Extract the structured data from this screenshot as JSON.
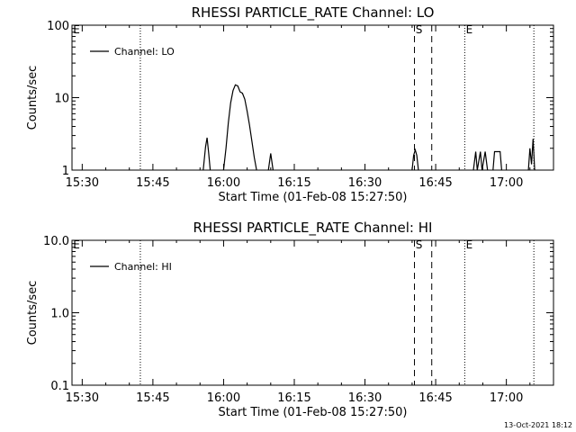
{
  "footer_timestamp": "13-Oct-2021 18:12",
  "chart_data": [
    {
      "type": "line",
      "title": "RHESSI PARTICLE_RATE Channel: LO",
      "xlabel": "Start Time (01-Feb-08 15:27:50)",
      "ylabel": "Counts/sec",
      "y_scale": "log",
      "xlim": [
        "15:27:50",
        "17:10:00"
      ],
      "ylim": [
        1,
        100
      ],
      "x_ticks": [
        "15:30",
        "15:45",
        "16:00",
        "16:15",
        "16:30",
        "16:45",
        "17:00"
      ],
      "y_ticks": [
        "1",
        "10",
        "100"
      ],
      "legend": {
        "position": "top-left",
        "entries": [
          "Channel: LO"
        ]
      },
      "markers": [
        {
          "label": "E",
          "time": "15:27:50",
          "style": "none"
        },
        {
          "label": "",
          "time": "15:42:20",
          "style": "dotted"
        },
        {
          "label": "S",
          "time": "16:40:30",
          "style": "dashed"
        },
        {
          "label": "",
          "time": "16:44:10",
          "style": "dashed"
        },
        {
          "label": "E",
          "time": "16:51:10",
          "style": "dotted"
        },
        {
          "label": "",
          "time": "17:05:50",
          "style": "dotted"
        }
      ],
      "series": [
        {
          "name": "Channel: LO",
          "segments": [
            [
              [
                "15:55:40",
                1
              ],
              [
                "15:56:10",
                2.1
              ],
              [
                "15:56:30",
                2.8
              ],
              [
                "15:56:50",
                1.7
              ],
              [
                "15:57:10",
                1
              ]
            ],
            [
              [
                "16:00:00",
                1
              ],
              [
                "16:00:30",
                2.0
              ],
              [
                "16:01:00",
                4.5
              ],
              [
                "16:01:30",
                8.5
              ],
              [
                "16:02:00",
                12.5
              ],
              [
                "16:02:30",
                15.0
              ],
              [
                "16:03:00",
                14.5
              ],
              [
                "16:03:30",
                12.0
              ],
              [
                "16:04:00",
                11.5
              ],
              [
                "16:04:30",
                9.5
              ],
              [
                "16:05:00",
                6.5
              ],
              [
                "16:05:30",
                4.2
              ],
              [
                "16:06:00",
                2.5
              ],
              [
                "16:06:30",
                1.5
              ],
              [
                "16:07:00",
                1
              ]
            ],
            [
              [
                "16:09:30",
                1
              ],
              [
                "16:10:00",
                1.7
              ],
              [
                "16:10:30",
                1
              ]
            ],
            [
              [
                "16:40:00",
                1
              ],
              [
                "16:40:20",
                1.6
              ],
              [
                "16:40:40",
                1.9
              ],
              [
                "16:41:00",
                1.6
              ],
              [
                "16:41:20",
                1
              ]
            ],
            [
              [
                "16:53:00",
                1
              ],
              [
                "16:53:30",
                1.8
              ],
              [
                "16:53:50",
                1
              ],
              [
                "16:54:30",
                1.8
              ],
              [
                "16:54:50",
                1
              ],
              [
                "16:55:30",
                1.8
              ],
              [
                "16:56:00",
                1
              ]
            ],
            [
              [
                "16:57:10",
                1
              ],
              [
                "16:57:30",
                1.8
              ],
              [
                "16:58:40",
                1.8
              ],
              [
                "16:59:00",
                1
              ]
            ],
            [
              [
                "17:04:40",
                1
              ],
              [
                "17:05:00",
                2.0
              ],
              [
                "17:05:20",
                1.2
              ],
              [
                "17:05:40",
                2.7
              ],
              [
                "17:06:00",
                1
              ]
            ]
          ]
        }
      ]
    },
    {
      "type": "line",
      "title": "RHESSI PARTICLE_RATE Channel: HI",
      "xlabel": "Start Time (01-Feb-08 15:27:50)",
      "ylabel": "Counts/sec",
      "y_scale": "log",
      "xlim": [
        "15:27:50",
        "17:10:00"
      ],
      "ylim": [
        0.1,
        10
      ],
      "x_ticks": [
        "15:30",
        "15:45",
        "16:00",
        "16:15",
        "16:30",
        "16:45",
        "17:00"
      ],
      "y_ticks": [
        "0.1",
        "1.0",
        "10.0"
      ],
      "legend": {
        "position": "top-left",
        "entries": [
          "Channel: HI"
        ]
      },
      "markers": [
        {
          "label": "E",
          "time": "15:27:50",
          "style": "none"
        },
        {
          "label": "",
          "time": "15:42:20",
          "style": "dotted"
        },
        {
          "label": "S",
          "time": "16:40:30",
          "style": "dashed"
        },
        {
          "label": "",
          "time": "16:44:10",
          "style": "dashed"
        },
        {
          "label": "E",
          "time": "16:51:10",
          "style": "dotted"
        },
        {
          "label": "",
          "time": "17:05:50",
          "style": "dotted"
        }
      ],
      "series": [
        {
          "name": "Channel: HI",
          "segments": []
        }
      ]
    }
  ]
}
